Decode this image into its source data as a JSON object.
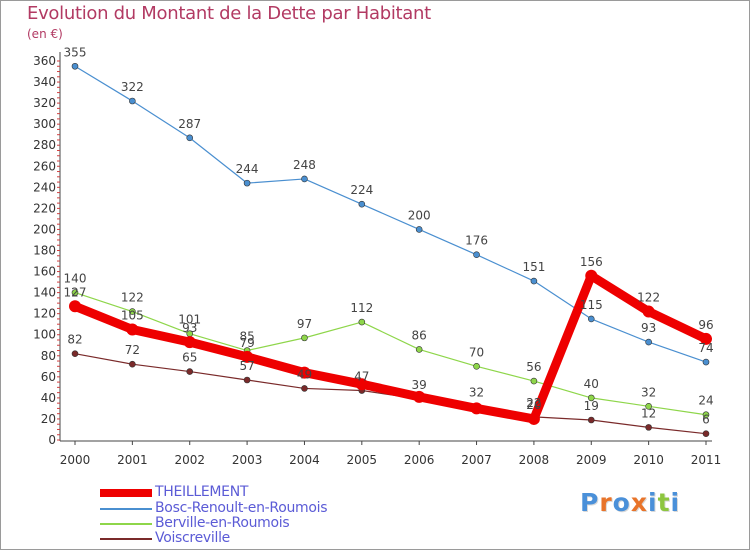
{
  "title": "Evolution du Montant de la Dette par Habitant",
  "unit_label": "(en €)",
  "chart_data": {
    "type": "line",
    "title": "Evolution du Montant de la Dette par Habitant",
    "ylabel": "(en €)",
    "x": [
      "2000",
      "2001",
      "2002",
      "2003",
      "2004",
      "2005",
      "2006",
      "2007",
      "2008",
      "2009",
      "2010",
      "2011"
    ],
    "ylim": [
      0,
      360
    ],
    "yticks": [
      0,
      20,
      40,
      60,
      80,
      100,
      120,
      140,
      160,
      180,
      200,
      220,
      240,
      260,
      280,
      300,
      320,
      340,
      360
    ],
    "grid": false,
    "legend_position": "bottom-left",
    "series": [
      {
        "name": "THEILLEMENT",
        "color": "#ee0000",
        "values": [
          127,
          105,
          93,
          79,
          64,
          53,
          41,
          30,
          20,
          156,
          122,
          96
        ],
        "labels": [
          "127",
          "105",
          "93",
          "79",
          "",
          "",
          "",
          "",
          "20",
          "156",
          "122",
          "96"
        ]
      },
      {
        "name": "Bosc-Renoult-en-Roumois",
        "color": "#4a8fd0",
        "values": [
          355,
          322,
          287,
          244,
          248,
          224,
          200,
          176,
          151,
          115,
          93,
          74
        ],
        "labels": [
          "355",
          "322",
          "287",
          "244",
          "248",
          "224",
          "200",
          "176",
          "151",
          "115",
          "93",
          "74"
        ]
      },
      {
        "name": "Berville-en-Roumois",
        "color": "#8ed64a",
        "values": [
          140,
          122,
          101,
          85,
          97,
          112,
          86,
          70,
          56,
          40,
          32,
          24
        ],
        "labels": [
          "140",
          "122",
          "101",
          "85",
          "97",
          "112",
          "86",
          "70",
          "56",
          "40",
          "32",
          "24"
        ]
      },
      {
        "name": "Voiscreville",
        "color": "#7a2a2a",
        "values": [
          82,
          72,
          65,
          57,
          49,
          47,
          39,
          32,
          22,
          19,
          12,
          6
        ],
        "labels": [
          "82",
          "72",
          "65",
          "57",
          "49",
          "47",
          "39",
          "32",
          "22",
          "19",
          "12",
          "6"
        ]
      }
    ]
  },
  "legend": {
    "items": [
      {
        "name": "THEILLEMENT",
        "color": "#ee0000"
      },
      {
        "name": "Bosc-Renoult-en-Roumois",
        "color": "#4a8fd0"
      },
      {
        "name": "Berville-en-Roumois",
        "color": "#8ed64a"
      },
      {
        "name": "Voiscreville",
        "color": "#7a2a2a"
      }
    ]
  },
  "logo": {
    "text": "Proxiti",
    "colors": [
      "#4a90d9",
      "#e8742a",
      "#4a90d9",
      "#e8742a",
      "#4a90d9",
      "#8dc63f",
      "#4a90d9"
    ]
  }
}
